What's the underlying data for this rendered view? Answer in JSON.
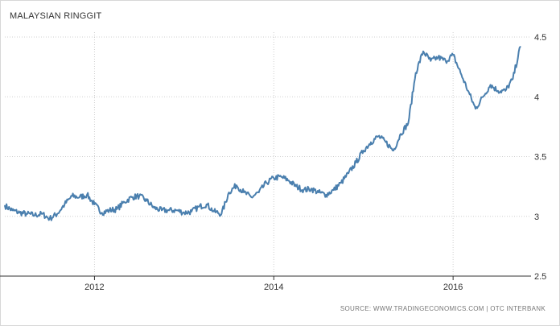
{
  "header": {
    "title": "MALAYSIAN RINGGIT"
  },
  "footer": {
    "source": "SOURCE: WWW.TRADINGECONOMICS.COM | OTC INTERBANK"
  },
  "colors": {
    "line": "#4a7fae",
    "grid": "#cfcfcf",
    "axis": "#333333"
  },
  "chart_data": {
    "type": "line",
    "title": "MALAYSIAN RINGGIT",
    "xlabel": "",
    "ylabel": "",
    "xlim": [
      "2011-01",
      "2016-10"
    ],
    "ylim": [
      2.5,
      4.5
    ],
    "y_ticks": [
      "2.5",
      "3",
      "3.5",
      "4",
      "4.5"
    ],
    "x_ticks": [
      "2012",
      "2014",
      "2016"
    ],
    "grid": "dotted",
    "series": [
      {
        "name": "",
        "x": [
          "2011-01",
          "2011-02",
          "2011-03",
          "2011-04",
          "2011-05",
          "2011-06",
          "2011-07",
          "2011-08",
          "2011-09",
          "2011-10",
          "2011-11",
          "2011-12",
          "2012-01",
          "2012-02",
          "2012-03",
          "2012-04",
          "2012-05",
          "2012-06",
          "2012-07",
          "2012-08",
          "2012-09",
          "2012-10",
          "2012-11",
          "2012-12",
          "2013-01",
          "2013-02",
          "2013-03",
          "2013-04",
          "2013-05",
          "2013-06",
          "2013-07",
          "2013-08",
          "2013-09",
          "2013-10",
          "2013-11",
          "2013-12",
          "2014-01",
          "2014-02",
          "2014-03",
          "2014-04",
          "2014-05",
          "2014-06",
          "2014-07",
          "2014-08",
          "2014-09",
          "2014-10",
          "2014-11",
          "2014-12",
          "2015-01",
          "2015-02",
          "2015-03",
          "2015-04",
          "2015-05",
          "2015-06",
          "2015-07",
          "2015-08",
          "2015-09",
          "2015-10",
          "2015-11",
          "2015-12",
          "2016-01",
          "2016-02",
          "2016-03",
          "2016-04",
          "2016-05",
          "2016-06",
          "2016-07",
          "2016-08",
          "2016-09",
          "2016-10"
        ],
        "values": [
          3.09,
          3.05,
          3.03,
          3.02,
          3.01,
          3.02,
          2.98,
          3.02,
          3.1,
          3.17,
          3.16,
          3.18,
          3.1,
          3.03,
          3.05,
          3.06,
          3.12,
          3.16,
          3.17,
          3.13,
          3.07,
          3.05,
          3.05,
          3.05,
          3.03,
          3.04,
          3.08,
          3.1,
          3.04,
          3.02,
          3.2,
          3.26,
          3.2,
          3.16,
          3.2,
          3.28,
          3.32,
          3.33,
          3.3,
          3.25,
          3.22,
          3.23,
          3.2,
          3.18,
          3.22,
          3.28,
          3.36,
          3.45,
          3.55,
          3.62,
          3.67,
          3.62,
          3.55,
          3.69,
          3.78,
          4.2,
          4.38,
          4.3,
          4.33,
          4.3,
          4.35,
          4.2,
          4.05,
          3.9,
          4.0,
          4.1,
          4.05,
          4.05,
          4.15,
          4.42
        ]
      }
    ]
  }
}
